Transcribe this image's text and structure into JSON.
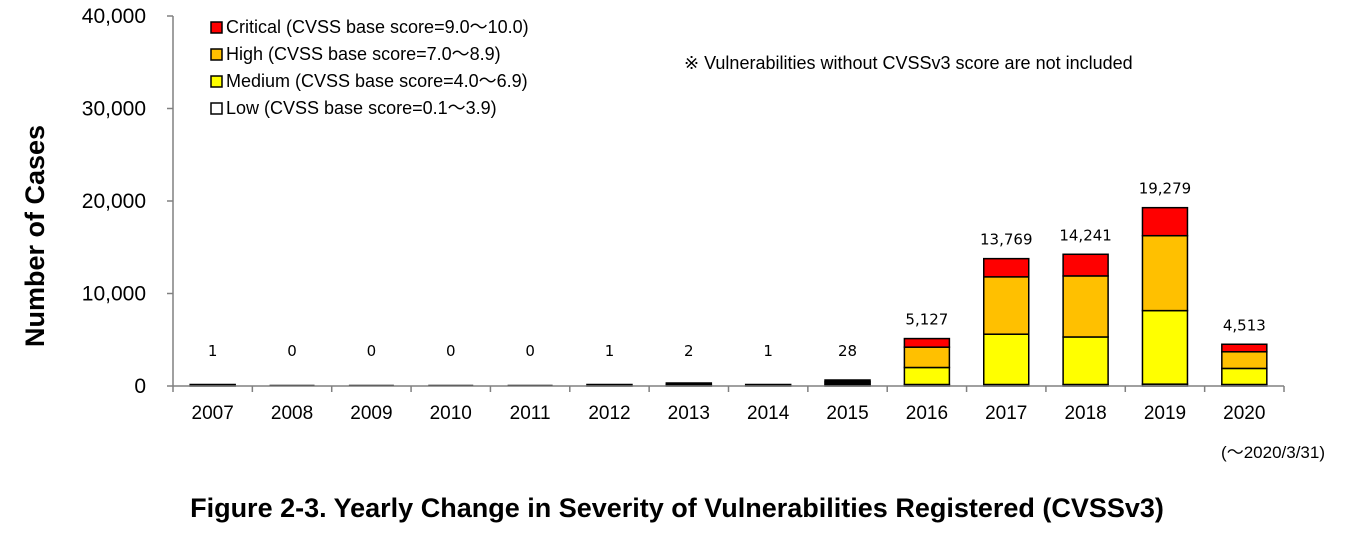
{
  "chart_data": {
    "type": "bar",
    "stacked": true,
    "title": "Figure 2-3. Yearly Change in Severity of Vulnerabilities Registered (CVSSv3)",
    "ylabel": "Number of Cases",
    "xlabel": "",
    "ylim": [
      0,
      40000
    ],
    "yticks": [
      0,
      10000,
      20000,
      30000,
      40000
    ],
    "ytick_labels": [
      "0",
      "10,000",
      "20,000",
      "30,000",
      "40,000"
    ],
    "categories": [
      "2007",
      "2008",
      "2009",
      "2010",
      "2011",
      "2012",
      "2013",
      "2014",
      "2015",
      "2016",
      "2017",
      "2018",
      "2019",
      "2020"
    ],
    "series": [
      {
        "name": "Low (CVSS base score=0.1～3.9)",
        "color": "#ffffff",
        "values": [
          0,
          0,
          0,
          0,
          0,
          0,
          0,
          0,
          2,
          50,
          100,
          100,
          200,
          50
        ]
      },
      {
        "name": "Medium (CVSS base score=4.0～6.9)",
        "color": "#ffff00",
        "values": [
          0,
          0,
          0,
          0,
          0,
          1,
          1,
          1,
          14,
          1950,
          5500,
          5200,
          7950,
          1850
        ]
      },
      {
        "name": "High (CVSS base score=7.0～8.9)",
        "color": "#ffc000",
        "values": [
          1,
          0,
          0,
          0,
          0,
          0,
          1,
          0,
          10,
          2200,
          6200,
          6600,
          8100,
          1800
        ]
      },
      {
        "name": "Critical (CVSS base score=9.0～10.0)",
        "color": "#ff0000",
        "values": [
          0,
          0,
          0,
          0,
          0,
          0,
          0,
          0,
          2,
          927,
          1969,
          2341,
          3029,
          813
        ]
      }
    ],
    "totals": [
      1,
      0,
      0,
      0,
      0,
      1,
      2,
      1,
      28,
      5127,
      13769,
      14241,
      19279,
      4513
    ],
    "total_labels": [
      "1",
      "0",
      "0",
      "0",
      "0",
      "1",
      "2",
      "1",
      "28",
      "5,127",
      "13,769",
      "14,241",
      "19,279",
      "4,513"
    ],
    "legend_order": [
      "Critical (CVSS base score=9.0～10.0)",
      "High (CVSS base score=7.0～8.9)",
      "Medium (CVSS base score=4.0～6.9)",
      "Low (CVSS base score=0.1～3.9)"
    ],
    "legend_placement": "top-left",
    "annotation": "※ Vulnerabilities without CVSSv3 score are not included",
    "last_category_note": "(～2020/3/31)",
    "grid": false
  }
}
